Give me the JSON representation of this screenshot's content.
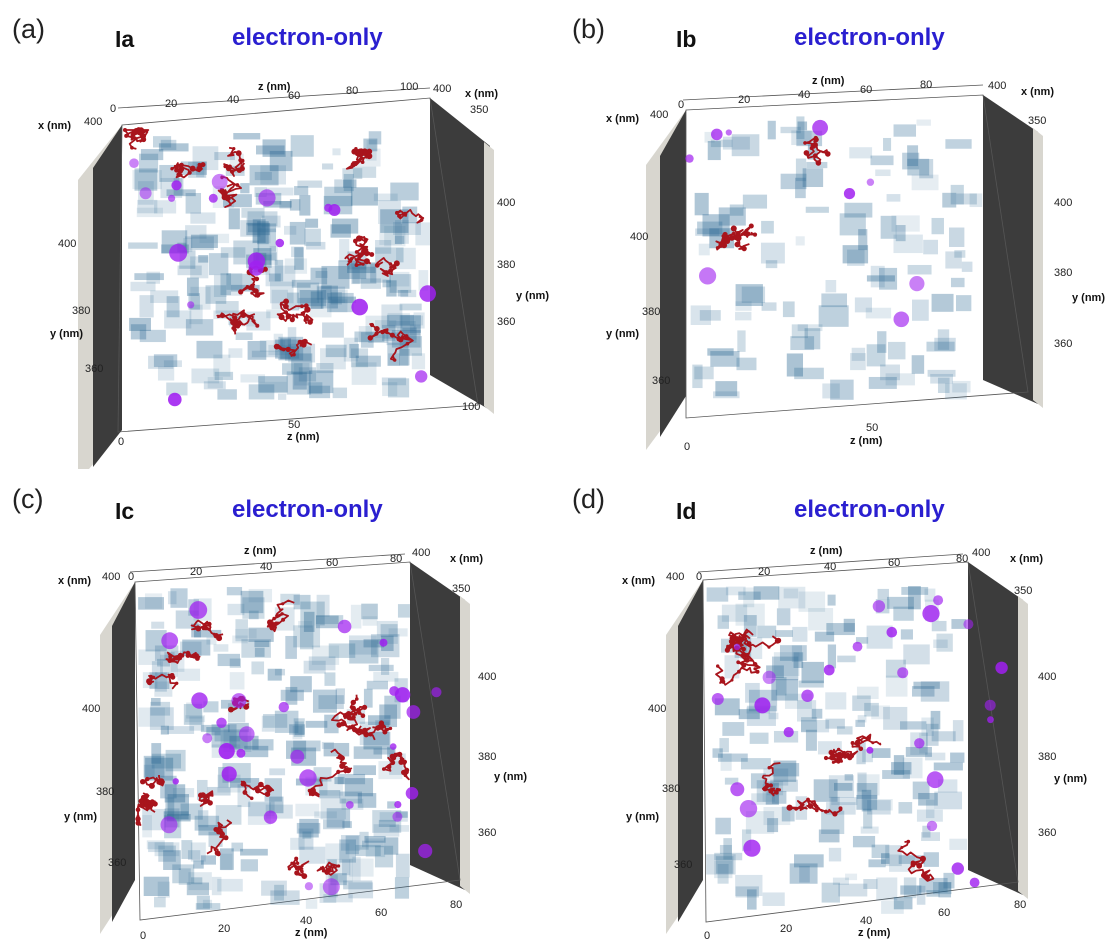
{
  "panels": [
    {
      "letter": "(a)",
      "code": "Ia",
      "condition": "electron-only",
      "axes": {
        "z_top": [
          "0",
          "20",
          "40",
          "60",
          "80",
          "100"
        ],
        "z_top_label": "z (nm)",
        "x_left": [
          "400"
        ],
        "x_left_label": "x (nm)",
        "x_right": [
          "400",
          "350"
        ],
        "x_right_label": "x (nm)",
        "y_left": [
          "400",
          "380",
          "360"
        ],
        "y_left_label": "y (nm)",
        "y_right": [
          "400",
          "380",
          "360"
        ],
        "y_right_label": "y (nm)",
        "z_bottom": [
          "0",
          "50",
          "100"
        ],
        "z_bottom_label": "z (nm)"
      }
    },
    {
      "letter": "(b)",
      "code": "Ib",
      "condition": "electron-only",
      "axes": {
        "z_top": [
          "0",
          "20",
          "40",
          "60",
          "80"
        ],
        "z_top_label": "z (nm)",
        "x_left": [
          "400"
        ],
        "x_left_label": "x (nm)",
        "x_right": [
          "400",
          "350"
        ],
        "x_right_label": "x (nm)",
        "y_left": [
          "400",
          "380",
          "360"
        ],
        "y_left_label": "y (nm)",
        "y_right": [
          "400",
          "380",
          "360"
        ],
        "y_right_label": "y (nm)",
        "z_bottom": [
          "0",
          "50"
        ],
        "z_bottom_label": "z (nm)"
      }
    },
    {
      "letter": "(c)",
      "code": "Ic",
      "condition": "electron-only",
      "axes": {
        "z_top": [
          "0",
          "20",
          "40",
          "60",
          "80"
        ],
        "z_top_label": "z (nm)",
        "x_left": [
          "400"
        ],
        "x_left_label": "x (nm)",
        "x_right": [
          "400",
          "350"
        ],
        "x_right_label": "x (nm)",
        "y_left": [
          "400",
          "380",
          "360"
        ],
        "y_left_label": "y (nm)",
        "y_right": [
          "400",
          "380",
          "360"
        ],
        "y_right_label": "y (nm)",
        "z_bottom": [
          "0",
          "20",
          "40",
          "60",
          "80"
        ],
        "z_bottom_label": "z (nm)"
      }
    },
    {
      "letter": "(d)",
      "code": "Id",
      "condition": "electron-only",
      "axes": {
        "z_top": [
          "0",
          "20",
          "40",
          "60",
          "80"
        ],
        "z_top_label": "z (nm)",
        "x_left": [
          "400"
        ],
        "x_left_label": "x (nm)",
        "x_right": [
          "400",
          "350"
        ],
        "x_right_label": "x (nm)",
        "y_left": [
          "400",
          "380",
          "360"
        ],
        "y_left_label": "y (nm)",
        "y_right": [
          "400",
          "380",
          "360"
        ],
        "y_right_label": "y (nm)",
        "z_bottom": [
          "0",
          "20",
          "40",
          "60",
          "80"
        ],
        "z_bottom_label": "z (nm)"
      }
    }
  ],
  "colors": {
    "cluster": "#2e6a94",
    "chain": "#a8141c",
    "sphere": "#a020f0",
    "wall": "#3c3c3c",
    "wall_edge": "#cfcfc8",
    "condition_text": "#2a1fd0"
  }
}
